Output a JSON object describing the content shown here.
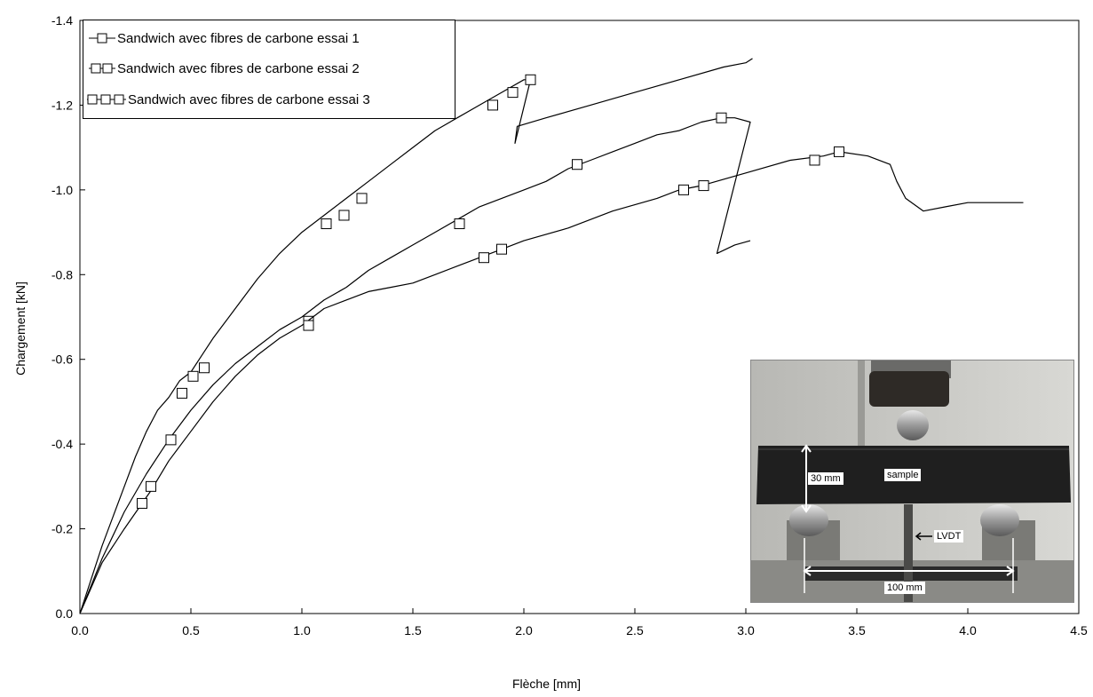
{
  "chart_data": {
    "type": "line",
    "xlabel": "Flèche [mm]",
    "ylabel": "Chargement [kN]",
    "xlim": [
      0,
      4.5
    ],
    "ylim": [
      0,
      -1.4
    ],
    "x_ticks": [
      "0.0",
      "0.5",
      "1.0",
      "1.5",
      "2.0",
      "2.5",
      "3.0",
      "3.5",
      "4.0",
      "4.5"
    ],
    "y_ticks": [
      "0.0",
      "-0.2",
      "-0.4",
      "-0.6",
      "-0.8",
      "-1.0",
      "-1.2",
      "-1.4"
    ],
    "grid": false,
    "legend_position": "top-left",
    "series": [
      {
        "name": "Sandwich avec fibres de carbone essai 1",
        "marker_count": 1,
        "x": [
          0,
          0.05,
          0.1,
          0.15,
          0.2,
          0.25,
          0.3,
          0.35,
          0.4,
          0.45,
          0.5,
          0.55,
          0.6,
          0.7,
          0.8,
          0.9,
          1.0,
          1.1,
          1.2,
          1.3,
          1.4,
          1.5,
          1.6,
          1.7,
          1.8,
          1.9,
          2.0,
          2.03,
          1.96,
          1.97,
          2.1,
          2.3,
          2.5,
          2.7,
          2.9,
          3.0,
          3.03
        ],
        "y": [
          0,
          -0.08,
          -0.16,
          -0.23,
          -0.3,
          -0.37,
          -0.43,
          -0.48,
          -0.51,
          -0.55,
          -0.57,
          -0.61,
          -0.65,
          -0.72,
          -0.79,
          -0.85,
          -0.9,
          -0.94,
          -0.98,
          -1.02,
          -1.06,
          -1.1,
          -1.14,
          -1.17,
          -1.2,
          -1.23,
          -1.26,
          -1.26,
          -1.11,
          -1.15,
          -1.17,
          -1.2,
          -1.23,
          -1.26,
          -1.29,
          -1.3,
          -1.31
        ],
        "markers": [
          {
            "x": 0.46,
            "y": -0.52
          },
          {
            "x": 0.51,
            "y": -0.56
          },
          {
            "x": 0.56,
            "y": -0.58
          },
          {
            "x": 1.11,
            "y": -0.92
          },
          {
            "x": 1.19,
            "y": -0.94
          },
          {
            "x": 1.27,
            "y": -0.98
          },
          {
            "x": 1.86,
            "y": -1.2
          },
          {
            "x": 1.95,
            "y": -1.23
          },
          {
            "x": 2.03,
            "y": -1.26
          }
        ]
      },
      {
        "name": "Sandwich avec fibres de carbone essai 2",
        "marker_count": 2,
        "x": [
          0,
          0.1,
          0.2,
          0.3,
          0.4,
          0.5,
          0.6,
          0.7,
          0.8,
          0.9,
          1.0,
          1.1,
          1.2,
          1.3,
          1.4,
          1.5,
          1.6,
          1.7,
          1.8,
          1.9,
          2.0,
          2.1,
          2.2,
          2.3,
          2.4,
          2.5,
          2.6,
          2.7,
          2.8,
          2.89,
          2.95,
          3.02,
          2.87,
          2.95,
          3.02
        ],
        "y": [
          0,
          -0.13,
          -0.24,
          -0.33,
          -0.41,
          -0.48,
          -0.54,
          -0.59,
          -0.63,
          -0.67,
          -0.7,
          -0.74,
          -0.77,
          -0.81,
          -0.84,
          -0.87,
          -0.9,
          -0.93,
          -0.96,
          -0.98,
          -1.0,
          -1.02,
          -1.05,
          -1.07,
          -1.09,
          -1.11,
          -1.13,
          -1.14,
          -1.16,
          -1.17,
          -1.17,
          -1.16,
          -0.85,
          -0.87,
          -0.88
        ],
        "markers": [
          {
            "x": 0.41,
            "y": -0.41
          },
          {
            "x": 1.03,
            "y": -0.69
          },
          {
            "x": 1.71,
            "y": -0.92
          },
          {
            "x": 2.24,
            "y": -1.06
          },
          {
            "x": 2.89,
            "y": -1.17
          }
        ]
      },
      {
        "name": "Sandwich avec fibres de carbone essai 3",
        "marker_count": 3,
        "x": [
          0,
          0.05,
          0.1,
          0.2,
          0.28,
          0.32,
          0.4,
          0.5,
          0.6,
          0.7,
          0.8,
          0.9,
          1.0,
          1.1,
          1.2,
          1.3,
          1.4,
          1.5,
          1.6,
          1.7,
          1.8,
          1.9,
          2.0,
          2.2,
          2.4,
          2.6,
          2.7,
          2.8,
          3.0,
          3.2,
          3.35,
          3.42,
          3.55,
          3.65,
          3.68,
          3.72,
          3.8,
          3.9,
          4.0,
          4.1,
          4.25
        ],
        "y": [
          0,
          -0.06,
          -0.12,
          -0.2,
          -0.26,
          -0.29,
          -0.36,
          -0.43,
          -0.5,
          -0.56,
          -0.61,
          -0.65,
          -0.68,
          -0.72,
          -0.74,
          -0.76,
          -0.77,
          -0.78,
          -0.8,
          -0.82,
          -0.84,
          -0.86,
          -0.88,
          -0.91,
          -0.95,
          -0.98,
          -1.0,
          -1.01,
          -1.04,
          -1.07,
          -1.08,
          -1.09,
          -1.08,
          -1.06,
          -1.02,
          -0.98,
          -0.95,
          -0.96,
          -0.97,
          -0.97,
          -0.97
        ],
        "markers": [
          {
            "x": 0.28,
            "y": -0.26
          },
          {
            "x": 0.32,
            "y": -0.3
          },
          {
            "x": 1.03,
            "y": -0.68
          },
          {
            "x": 1.82,
            "y": -0.84
          },
          {
            "x": 1.9,
            "y": -0.86
          },
          {
            "x": 2.72,
            "y": -1.0
          },
          {
            "x": 2.81,
            "y": -1.01
          },
          {
            "x": 3.31,
            "y": -1.07
          },
          {
            "x": 3.42,
            "y": -1.09
          }
        ]
      }
    ]
  },
  "inset_photo": {
    "labels": {
      "height": "30 mm",
      "sample": "sample",
      "lvdt": "LVDT",
      "span": "100 mm"
    }
  }
}
